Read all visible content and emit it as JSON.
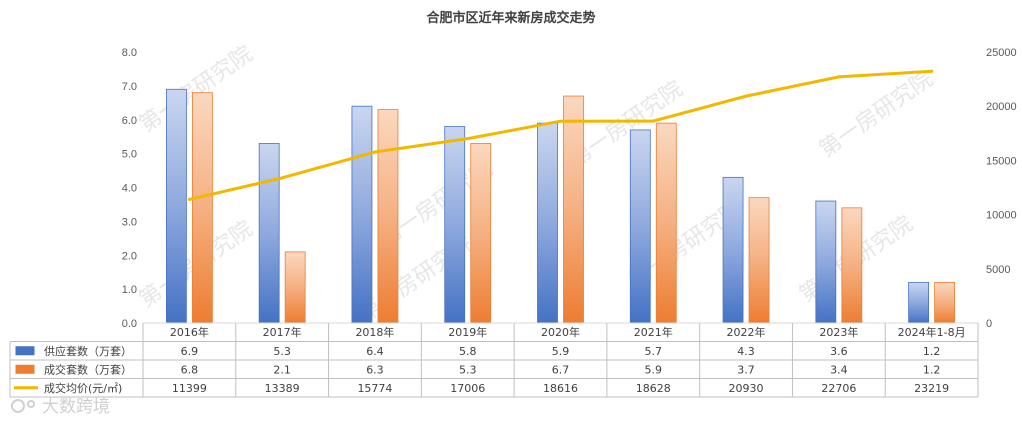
{
  "chart_data": {
    "type": "bar",
    "title": "合肥市区近年来新房成交走势",
    "categories": [
      "2016年",
      "2017年",
      "2018年",
      "2019年",
      "2020年",
      "2021年",
      "2022年",
      "2023年",
      "2024年1-8月"
    ],
    "series": [
      {
        "name": "供应套数（万套）",
        "kind": "bar",
        "axis": "left",
        "color": "#4472C4",
        "values": [
          6.9,
          5.3,
          6.4,
          5.8,
          5.9,
          5.7,
          4.3,
          3.6,
          1.2
        ]
      },
      {
        "name": "成交套数（万套）",
        "kind": "bar",
        "axis": "left",
        "color": "#ED7D31",
        "values": [
          6.8,
          2.1,
          6.3,
          5.3,
          6.7,
          5.9,
          3.7,
          3.4,
          1.2
        ]
      },
      {
        "name": "成交均价(元/㎡)",
        "kind": "line",
        "axis": "right",
        "color": "#F2B800",
        "values": [
          11399,
          13389,
          15774,
          17006,
          18616,
          18628,
          20930,
          22706,
          23219
        ]
      }
    ],
    "left_axis": {
      "min": 0,
      "max": 8,
      "step": 1,
      "tick_labels": [
        "0.0",
        "1.0",
        "2.0",
        "3.0",
        "4.0",
        "5.0",
        "6.0",
        "7.0",
        "8.0"
      ]
    },
    "right_axis": {
      "min": 0,
      "max": 25000,
      "step": 5000,
      "tick_labels": [
        "0",
        "5000",
        "10000",
        "15000",
        "20000",
        "25000"
      ]
    },
    "data_table": {
      "rows": [
        [
          "6.9",
          "5.3",
          "6.4",
          "5.8",
          "5.9",
          "5.7",
          "4.3",
          "3.6",
          "1.2"
        ],
        [
          "6.8",
          "2.1",
          "6.3",
          "5.3",
          "6.7",
          "5.9",
          "3.7",
          "3.4",
          "1.2"
        ],
        [
          "11399",
          "13389",
          "15774",
          "17006",
          "18616",
          "18628",
          "20930",
          "22706",
          "23219"
        ]
      ]
    },
    "grid": false,
    "legend_placement": "data-table"
  },
  "watermark": "第一房研究院",
  "logo": "大数跨境"
}
